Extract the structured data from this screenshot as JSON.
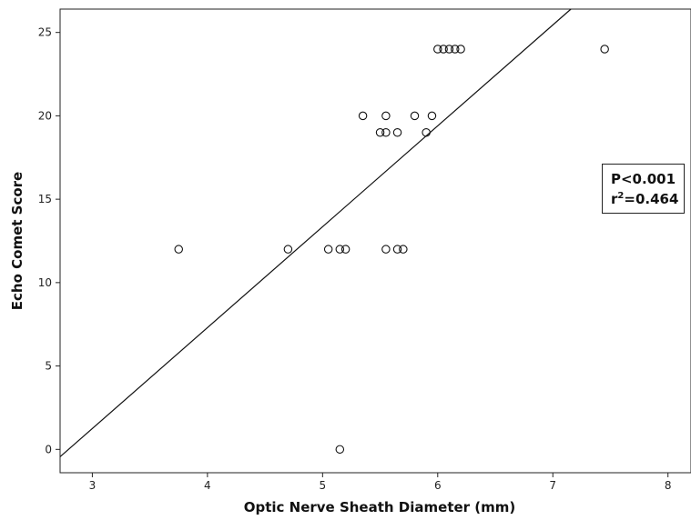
{
  "chart_data": {
    "type": "scatter",
    "title": "",
    "xlabel": "Optic Nerve Sheath Diameter (mm)",
    "ylabel": "Echo Comet Score",
    "xlim": [
      2.72,
      8.2
    ],
    "ylim": [
      -1.4,
      26.4
    ],
    "xticks": [
      3,
      4,
      5,
      6,
      7,
      8
    ],
    "yticks": [
      0,
      5,
      10,
      15,
      20,
      25
    ],
    "grid": false,
    "points": [
      {
        "x": 3.75,
        "y": 12
      },
      {
        "x": 4.7,
        "y": 12
      },
      {
        "x": 5.05,
        "y": 12
      },
      {
        "x": 5.15,
        "y": 12
      },
      {
        "x": 5.2,
        "y": 12
      },
      {
        "x": 5.55,
        "y": 12
      },
      {
        "x": 5.65,
        "y": 12
      },
      {
        "x": 5.7,
        "y": 12
      },
      {
        "x": 5.15,
        "y": 0
      },
      {
        "x": 5.35,
        "y": 20
      },
      {
        "x": 5.5,
        "y": 19
      },
      {
        "x": 5.55,
        "y": 19
      },
      {
        "x": 5.55,
        "y": 20
      },
      {
        "x": 5.65,
        "y": 19
      },
      {
        "x": 5.8,
        "y": 20
      },
      {
        "x": 5.9,
        "y": 19
      },
      {
        "x": 5.95,
        "y": 20
      },
      {
        "x": 6.0,
        "y": 24
      },
      {
        "x": 6.05,
        "y": 24
      },
      {
        "x": 6.1,
        "y": 24
      },
      {
        "x": 6.15,
        "y": 24
      },
      {
        "x": 6.2,
        "y": 24
      },
      {
        "x": 7.45,
        "y": 24
      }
    ],
    "fit_line": {
      "slope": 6.05,
      "intercept": -16.9
    },
    "annotation": {
      "p_text": "P<0.001",
      "r2_prefix": "r",
      "r2_sup": "2",
      "r2_value": "=0.464"
    }
  }
}
